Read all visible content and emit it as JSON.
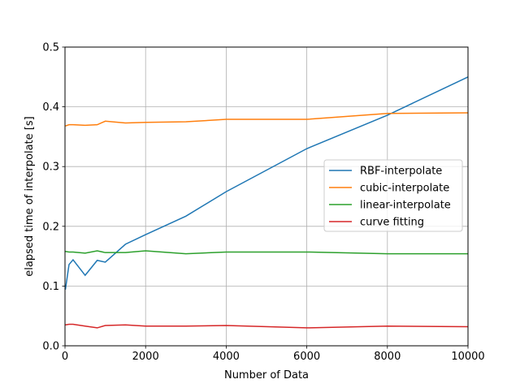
{
  "chart_data": {
    "type": "line",
    "title": "",
    "xlabel": "Number of Data",
    "ylabel": "elapsed time of interpolate [s]",
    "xlim": [
      0,
      10000
    ],
    "ylim": [
      0,
      0.5
    ],
    "xticks": [
      0,
      2000,
      4000,
      6000,
      8000,
      10000
    ],
    "xtick_labels": [
      "0",
      "2000",
      "4000",
      "6000",
      "8000",
      "10000"
    ],
    "yticks": [
      0,
      0.1,
      0.2,
      0.3,
      0.4,
      0.5
    ],
    "ytick_labels": [
      "0.0",
      "0.1",
      "0.2",
      "0.3",
      "0.4",
      "0.5"
    ],
    "grid": true,
    "legend_position": "center-right",
    "x": [
      10,
      100,
      200,
      500,
      800,
      1000,
      1500,
      2000,
      3000,
      4000,
      6000,
      8000,
      10000
    ],
    "series": [
      {
        "name": "RBF-interpolate",
        "color": "#1f77b4",
        "values": [
          0.094,
          0.136,
          0.144,
          0.118,
          0.143,
          0.14,
          0.17,
          0.186,
          0.217,
          0.258,
          0.33,
          0.386,
          0.45
        ]
      },
      {
        "name": "cubic-interpolate",
        "color": "#ff7f0e",
        "values": [
          0.368,
          0.37,
          0.37,
          0.369,
          0.37,
          0.376,
          0.373,
          0.374,
          0.375,
          0.379,
          0.379,
          0.389,
          0.39
        ]
      },
      {
        "name": "linear-interpolate",
        "color": "#2ca02c",
        "values": [
          0.158,
          0.157,
          0.157,
          0.155,
          0.159,
          0.156,
          0.156,
          0.159,
          0.154,
          0.157,
          0.157,
          0.154,
          0.154
        ]
      },
      {
        "name": "curve fitting",
        "color": "#d62728",
        "values": [
          0.035,
          0.036,
          0.036,
          0.033,
          0.03,
          0.034,
          0.035,
          0.033,
          0.033,
          0.034,
          0.03,
          0.033,
          0.032
        ]
      }
    ]
  }
}
